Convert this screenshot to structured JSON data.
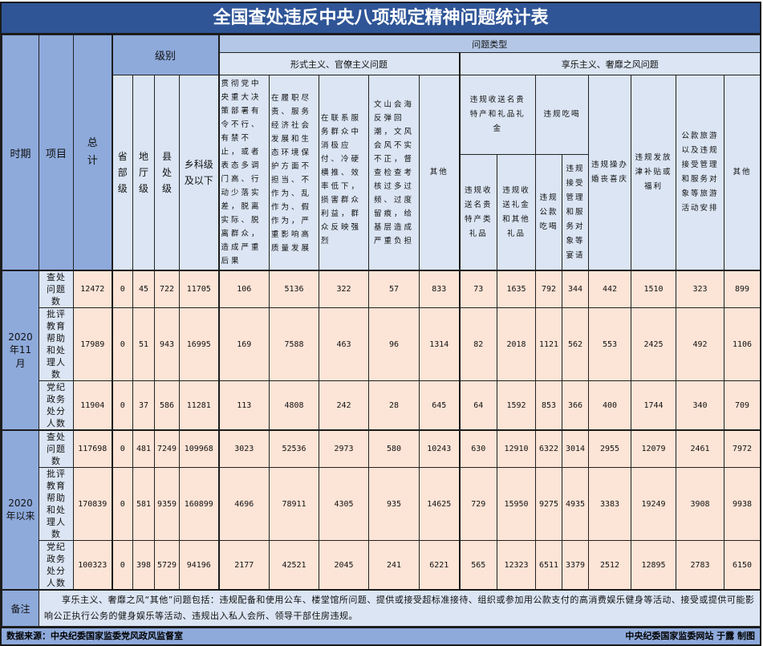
{
  "title": "全国查处违反中央八项规定精神问题统计表",
  "header": {
    "period": "时期",
    "item": "项目",
    "total": "总计",
    "level": "级别",
    "levels": [
      "省部级",
      "地厅级",
      "县处级",
      "乡科级及以下"
    ],
    "problem_type": "问题类型",
    "formalism": "形式主义、官僚主义问题",
    "hedonism": "享乐主义、奢靡之风问题",
    "formalism_cols": [
      "贯彻党中央重大决策部署有令不行、有禁不止，或者表态多调门高、行动少落实差，脱离实际、脱离群众，造成严重后果",
      "在履职尽责、服务经济社会发展和生态环境保护方面不担当、不作为、乱作为、假作为，严重影响高质量发展",
      "在联系服务群众中消极应付、冷硬横推、效率低下，损害群众利益，群众反映强烈",
      "文山会海反弹回潮，文风会风不实不正，督查检查考核过多过频、过度留痕，给基层造成严重负担",
      "其他"
    ],
    "gift_group": "违规收送名贵特产和礼品礼金",
    "dining_group": "违规吃喝",
    "gift_cols": [
      "违规收送名贵特产类礼品",
      "违规收送礼金和其他礼品"
    ],
    "dining_cols": [
      "违规公款吃喝",
      "违规接受管理和服务对象等宴请"
    ],
    "hedonism_cols": [
      "违规操办婚丧喜庆",
      "违规发放津补贴或福利",
      "公款旅游以及违规接受管理和服务对象等旅游活动安排",
      "其他"
    ]
  },
  "periods": [
    {
      "label": "2020年11月",
      "rows": [
        {
          "item": "查处问题数",
          "values": [
            "12472",
            "0",
            "45",
            "722",
            "11705",
            "106",
            "5136",
            "322",
            "57",
            "833",
            "73",
            "1635",
            "792",
            "344",
            "442",
            "1510",
            "323",
            "899"
          ]
        },
        {
          "item": "批评教育帮助和处理人数",
          "values": [
            "17989",
            "0",
            "51",
            "943",
            "16995",
            "169",
            "7588",
            "463",
            "96",
            "1314",
            "82",
            "2018",
            "1121",
            "562",
            "553",
            "2425",
            "492",
            "1106"
          ]
        },
        {
          "item": "党纪政务处分人数",
          "values": [
            "11904",
            "0",
            "37",
            "586",
            "11281",
            "113",
            "4808",
            "242",
            "28",
            "645",
            "64",
            "1592",
            "853",
            "366",
            "400",
            "1744",
            "340",
            "709"
          ]
        }
      ]
    },
    {
      "label": "2020年以来",
      "rows": [
        {
          "item": "查处问题数",
          "values": [
            "117698",
            "0",
            "481",
            "7249",
            "109968",
            "3023",
            "52536",
            "2973",
            "580",
            "10243",
            "630",
            "12910",
            "6322",
            "3014",
            "2955",
            "12079",
            "2461",
            "7972"
          ]
        },
        {
          "item": "批评教育帮助和处理人数",
          "values": [
            "170839",
            "0",
            "581",
            "9359",
            "160899",
            "4696",
            "78911",
            "4305",
            "935",
            "14625",
            "729",
            "15950",
            "9275",
            "4935",
            "3383",
            "19249",
            "3908",
            "9938"
          ]
        },
        {
          "item": "党纪政务处分人数",
          "values": [
            "100323",
            "0",
            "398",
            "5729",
            "94196",
            "2177",
            "42521",
            "2045",
            "241",
            "6221",
            "565",
            "12323",
            "6511",
            "3379",
            "2512",
            "12895",
            "2783",
            "6150"
          ]
        }
      ]
    }
  ],
  "note": {
    "label": "备注",
    "text": "享乐主义、奢靡之风“其他”问题包括：违规配备和使用公车、楼堂馆所问题、提供或接受超标准接待、组织或参加用公款支付的高消费娱乐健身等活动、接受或提供可能影响公正执行公务的健身娱乐等活动、违规出入私人会所、领导干部住房违规。"
  },
  "footer": {
    "source": "数据来源：中央纪委国家监委党风政风监督室",
    "credit": "中央纪委国家监委网站 于露 制图"
  },
  "colors": {
    "title_bg": "#2f5597",
    "header_blue": "#8eaadb",
    "light_blue": "#dbe5f3",
    "data_peach": "#fce4d6"
  }
}
